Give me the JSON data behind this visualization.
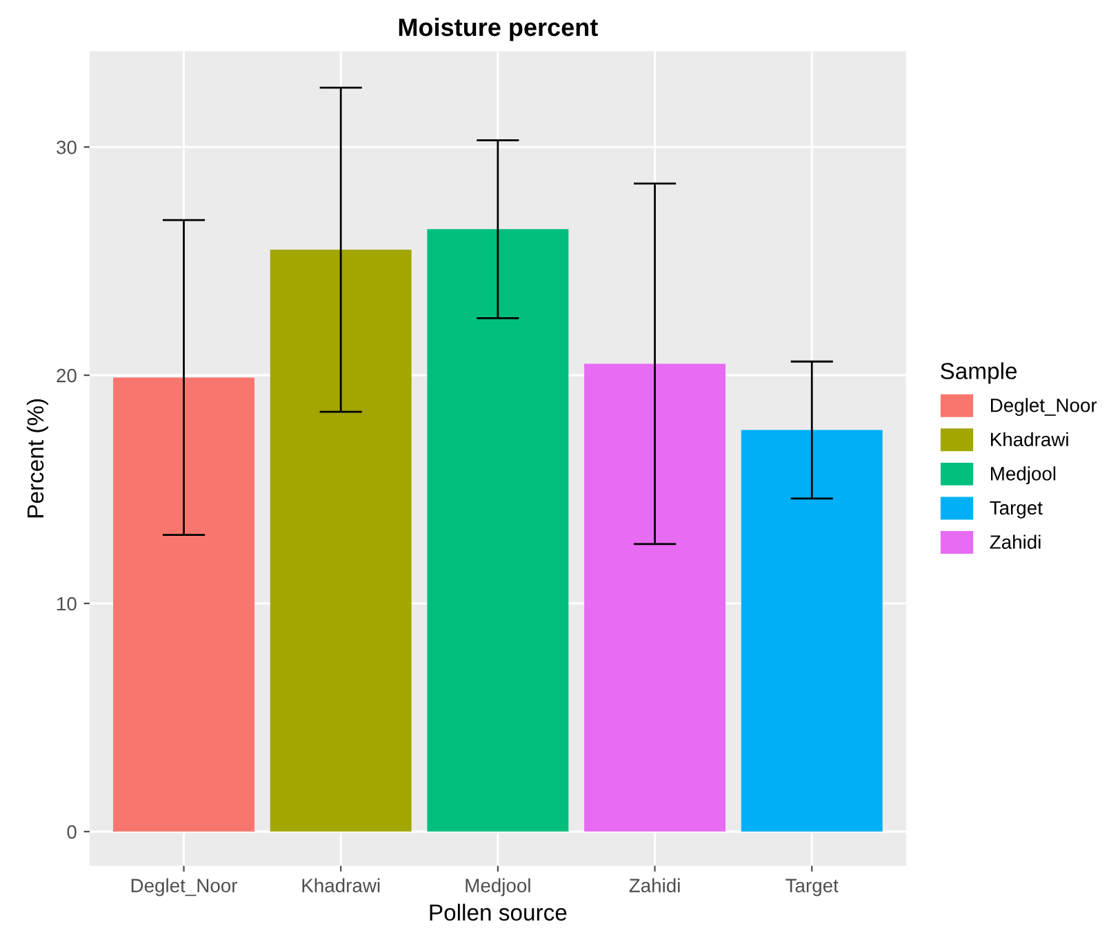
{
  "chart_data": {
    "type": "bar",
    "title": "Moisture percent",
    "xlabel": "Pollen source",
    "ylabel": "Percent (%)",
    "legend_title": "Sample",
    "categories": [
      "Deglet_Noor",
      "Khadrawi",
      "Medjool",
      "Zahidi",
      "Target"
    ],
    "series": [
      {
        "name": "Deglet_Noor",
        "color": "#f8766d",
        "values": [
          19.9,
          null,
          null,
          null,
          null
        ],
        "errors": [
          6.9,
          null,
          null,
          null,
          null
        ]
      },
      {
        "name": "Khadrawi",
        "color": "#a3a500",
        "values": [
          null,
          25.5,
          null,
          null,
          null
        ],
        "errors": [
          null,
          7.1,
          null,
          null,
          null
        ]
      },
      {
        "name": "Medjool",
        "color": "#00bf7d",
        "values": [
          null,
          null,
          26.4,
          null,
          null
        ],
        "errors": [
          null,
          null,
          3.9,
          null,
          null
        ]
      },
      {
        "name": "Target",
        "color": "#00b0f6",
        "values": [
          null,
          null,
          null,
          null,
          17.6
        ],
        "errors": [
          null,
          null,
          null,
          null,
          3.0
        ]
      },
      {
        "name": "Zahidi",
        "color": "#e76bf3",
        "values": [
          null,
          null,
          null,
          20.5,
          null
        ],
        "errors": [
          null,
          null,
          null,
          7.9,
          null
        ]
      }
    ],
    "ylim": [
      -1.5,
      34.2
    ],
    "yticks": [
      0,
      10,
      20,
      30
    ],
    "grid": true,
    "legend": "right"
  }
}
